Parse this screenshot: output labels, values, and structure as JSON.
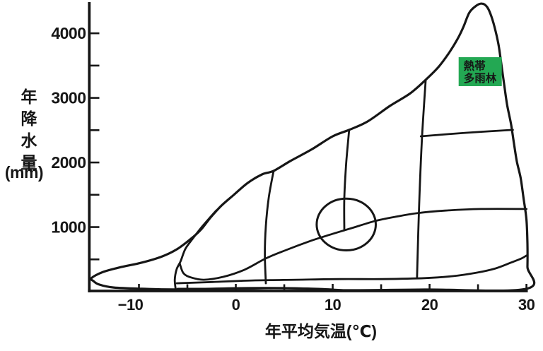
{
  "chart_data": {
    "type": "area",
    "title": "",
    "description": "Biome distribution diagram: annual precipitation vs annual mean temperature; outlined climate envelope with internal biome boundary lines; only the tropical rainforest region is labeled with a green badge",
    "xlabel": "年平均気温(℃)",
    "ylabel_chars": [
      "年",
      "降",
      "水",
      "量"
    ],
    "ylabel_unit": "(mm)",
    "xlim": [
      -15,
      30
    ],
    "ylim": [
      0,
      4500
    ],
    "x_major_ticks": [
      {
        "value": -10,
        "label": "−10"
      },
      {
        "value": 0,
        "label": "0"
      },
      {
        "value": 10,
        "label": "10"
      },
      {
        "value": 20,
        "label": "20"
      },
      {
        "value": 30,
        "label": "30"
      }
    ],
    "x_minor_ticks": [
      -5,
      5,
      15,
      25
    ],
    "y_major_ticks": [
      {
        "value": 1000,
        "label": "1000"
      },
      {
        "value": 2000,
        "label": "2000"
      },
      {
        "value": 3000,
        "label": "3000"
      },
      {
        "value": 4000,
        "label": "4000"
      }
    ],
    "y_minor_ticks": [
      500,
      1500,
      2500,
      3500
    ],
    "line_color": "#161616",
    "badge": {
      "lines": [
        "熱帯",
        "多雨林"
      ],
      "bg": "#23a853",
      "text_color": "#ffffff",
      "anchor_temp": 23.0,
      "anchor_precip": 3630
    },
    "outline": [
      [
        -14.9,
        210
      ],
      [
        -13.8,
        300
      ],
      [
        -12.0,
        375
      ],
      [
        -9.7,
        450
      ],
      [
        -7.7,
        540
      ],
      [
        -6.1,
        655
      ],
      [
        -4.7,
        810
      ],
      [
        -3.6,
        960
      ],
      [
        -2.6,
        1150
      ],
      [
        -1.5,
        1330
      ],
      [
        -0.2,
        1500
      ],
      [
        1.2,
        1680
      ],
      [
        2.7,
        1815
      ],
      [
        3.9,
        1870
      ],
      [
        5.6,
        2020
      ],
      [
        7.8,
        2200
      ],
      [
        10.0,
        2405
      ],
      [
        11.7,
        2505
      ],
      [
        13.6,
        2635
      ],
      [
        15.9,
        2875
      ],
      [
        18.0,
        3070
      ],
      [
        19.6,
        3280
      ],
      [
        20.9,
        3475
      ],
      [
        22.0,
        3695
      ],
      [
        22.9,
        3915
      ],
      [
        23.5,
        4100
      ],
      [
        24.1,
        4320
      ],
      [
        24.8,
        4425
      ],
      [
        25.4,
        4460
      ],
      [
        25.9,
        4415
      ],
      [
        26.3,
        4295
      ],
      [
        26.7,
        4100
      ],
      [
        27.1,
        3835
      ],
      [
        27.4,
        3530
      ],
      [
        27.7,
        3205
      ],
      [
        28.0,
        2895
      ],
      [
        28.4,
        2600
      ],
      [
        28.7,
        2305
      ],
      [
        29.0,
        2020
      ],
      [
        29.4,
        1760
      ],
      [
        29.7,
        1445
      ],
      [
        30.0,
        1115
      ],
      [
        30.1,
        745
      ],
      [
        30.1,
        385
      ],
      [
        30.0,
        45
      ],
      [
        19.5,
        33
      ],
      [
        11.4,
        22
      ],
      [
        6.3,
        50
      ],
      [
        1.2,
        55
      ],
      [
        -6.0,
        35
      ],
      [
        -9.7,
        45
      ],
      [
        -12.6,
        65
      ],
      [
        -14.1,
        110
      ],
      [
        -14.7,
        165
      ]
    ],
    "boundaries": {
      "tundra_left": [
        [
          -6.2,
          25
        ],
        [
          -6.3,
          185
        ],
        [
          -6.1,
          350
        ],
        [
          -5.7,
          470
        ],
        [
          -5.2,
          665
        ],
        [
          -4.4,
          830
        ],
        [
          -3.6,
          985
        ],
        [
          -2.8,
          1125
        ],
        [
          -2.0,
          1260
        ]
      ],
      "forest_grassland": [
        [
          -5.8,
          440
        ],
        [
          -5.4,
          285
        ],
        [
          -4.6,
          220
        ],
        [
          -3.3,
          185
        ],
        [
          -1.3,
          230
        ],
        [
          0.9,
          340
        ],
        [
          3.1,
          515
        ],
        [
          5.2,
          645
        ],
        [
          7.8,
          790
        ],
        [
          10.0,
          895
        ],
        [
          12.2,
          995
        ],
        [
          14.4,
          1095
        ],
        [
          16.5,
          1160
        ],
        [
          18.7,
          1215
        ],
        [
          21.6,
          1255
        ],
        [
          25.3,
          1280
        ],
        [
          30.0,
          1280
        ]
      ],
      "grassland_desert": [
        [
          -6.1,
          130
        ],
        [
          -2.4,
          150
        ],
        [
          2.0,
          175
        ],
        [
          6.3,
          185
        ],
        [
          10.7,
          195
        ],
        [
          15.1,
          195
        ],
        [
          19.5,
          210
        ],
        [
          22.4,
          240
        ],
        [
          24.9,
          295
        ],
        [
          26.8,
          360
        ],
        [
          28.4,
          450
        ],
        [
          29.5,
          515
        ],
        [
          30.0,
          560
        ]
      ],
      "desert_floor": [
        [
          -6.0,
          45
        ],
        [
          -0.2,
          45
        ],
        [
          4.9,
          55
        ],
        [
          8.5,
          45
        ],
        [
          11.2,
          22
        ]
      ],
      "divider_3c": [
        [
          3.9,
          1870
        ],
        [
          3.4,
          1455
        ],
        [
          3.1,
          1015
        ],
        [
          3.0,
          580
        ],
        [
          3.1,
          130
        ]
      ],
      "divider_11c": [
        [
          11.7,
          2505
        ],
        [
          11.4,
          2000
        ],
        [
          11.2,
          1455
        ],
        [
          11.2,
          950
        ]
      ],
      "divider_19c": [
        [
          19.6,
          3280
        ],
        [
          19.2,
          2330
        ],
        [
          18.9,
          1235
        ],
        [
          18.7,
          210
        ]
      ],
      "subtropical_tropical": [
        [
          19.1,
          2405
        ],
        [
          23.8,
          2460
        ],
        [
          28.6,
          2505
        ]
      ]
    },
    "ellipse": {
      "center_temp": 11.4,
      "center_precip": 1040,
      "rx_temp": 3.05,
      "ry_precip": 400
    }
  }
}
